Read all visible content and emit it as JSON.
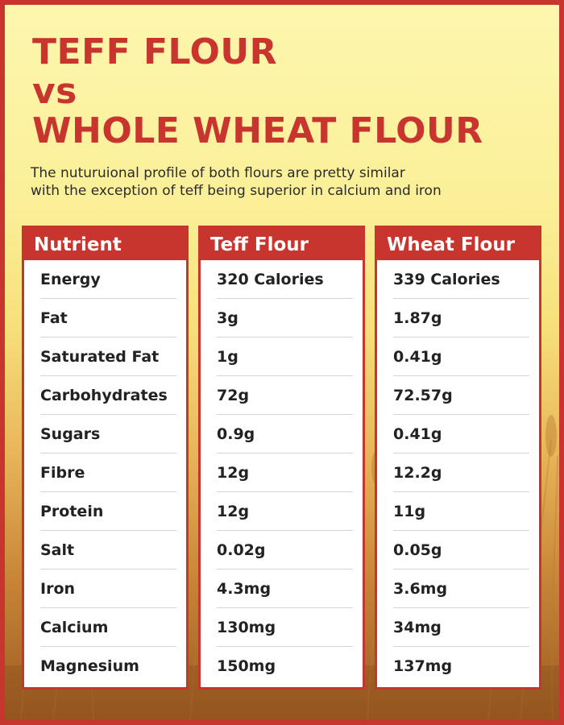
{
  "title": {
    "line1": "TEFF FLOUR",
    "line2": "vs",
    "line3": "WHOLE WHEAT FLOUR"
  },
  "subtitle": {
    "line1": "The nuturuional profile of both flours are pretty similar",
    "line2": "with the exception of teff being superior in calcium and iron"
  },
  "columns": {
    "nutrient": {
      "header": "Nutrient",
      "rows": [
        "Energy",
        "Fat",
        "Saturated Fat",
        "Carbohydrates",
        "Sugars",
        "Fibre",
        "Protein",
        "Salt",
        "Iron",
        "Calcium",
        "Magnesium"
      ]
    },
    "teff": {
      "header": "Teff Flour",
      "rows": [
        "320 Calories",
        "3g",
        "1g",
        "72g",
        "0.9g",
        "12g",
        "12g",
        "0.02g",
        "4.3mg",
        "130mg",
        "150mg"
      ]
    },
    "wheat": {
      "header": "Wheat Flour",
      "rows": [
        "339 Calories",
        "1.87g",
        "0.41g",
        "72.57g",
        "0.41g",
        "12.2g",
        "11g",
        "0.05g",
        "3.6mg",
        "34mg",
        "137mg"
      ]
    }
  },
  "colors": {
    "accent": "#c8352e",
    "background_top": "#fdf6ad",
    "background_bottom": "#9a5a22"
  }
}
